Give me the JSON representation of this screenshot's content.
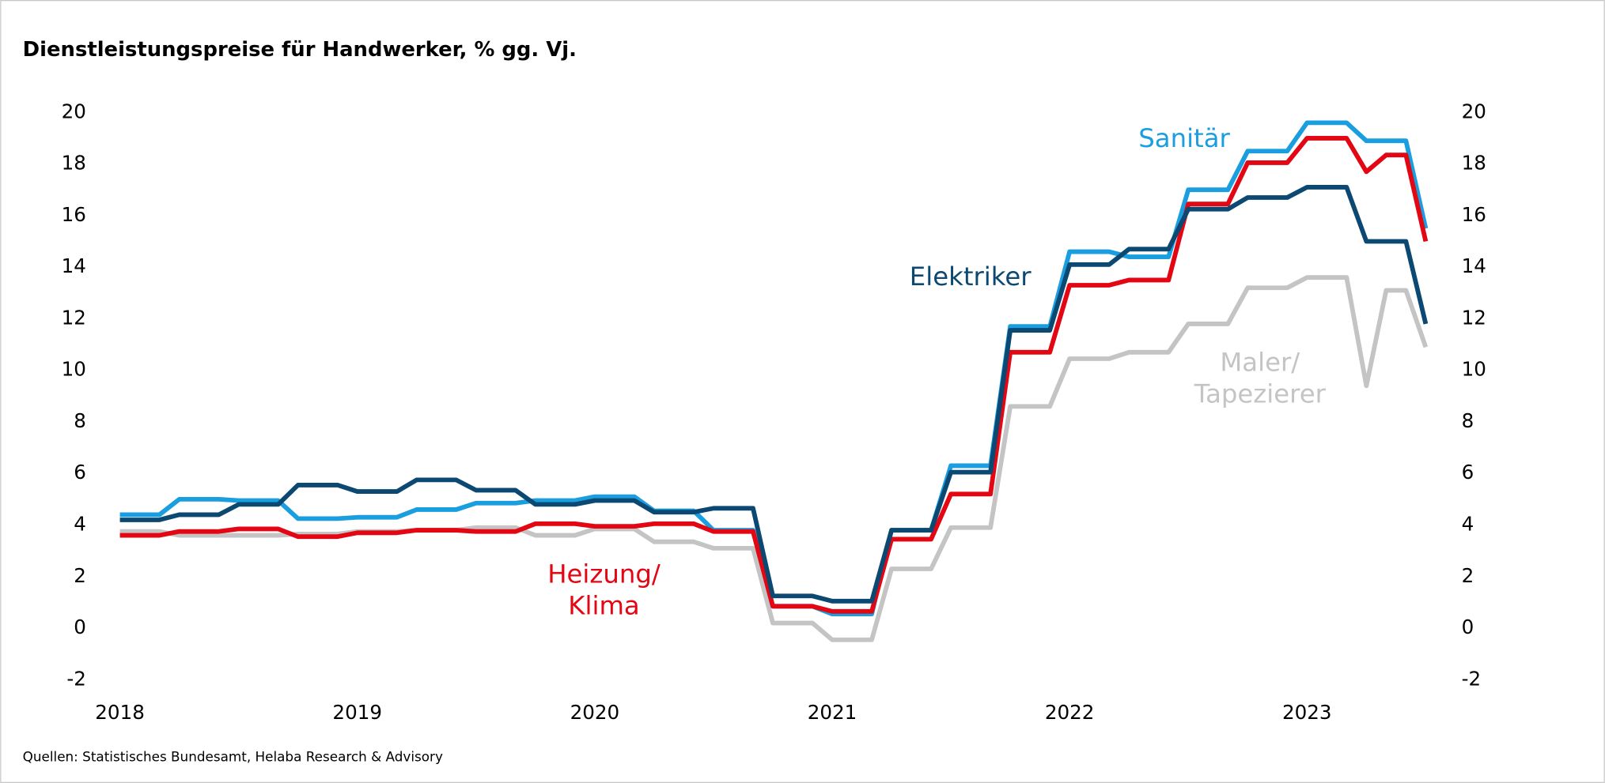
{
  "chart_data": {
    "type": "line",
    "title": "Dienstleistungspreise für Handwerker, % gg. Vj.",
    "source": "Quellen: Statistisches Bundesamt, Helaba Research & Advisory",
    "categories": [
      "2018",
      null,
      null,
      null,
      null,
      null,
      null,
      null,
      null,
      null,
      null,
      null,
      "2019",
      null,
      null,
      null,
      null,
      null,
      null,
      null,
      null,
      null,
      null,
      null,
      "2020",
      null,
      null,
      null,
      null,
      null,
      null,
      null,
      null,
      null,
      null,
      null,
      "2021",
      null,
      null,
      null,
      null,
      null,
      null,
      null,
      null,
      null,
      null,
      null,
      "2022",
      null,
      null,
      null,
      null,
      null,
      null,
      null,
      null,
      null,
      null,
      null,
      "2023",
      null,
      null,
      null,
      null,
      null,
      null
    ],
    "ylim": [
      -2,
      20
    ],
    "yticks": [
      -2,
      0,
      2,
      4,
      6,
      8,
      10,
      12,
      14,
      16,
      18,
      20
    ],
    "grid": false,
    "series": [
      {
        "name": "Maler/Tapezierer",
        "color": "#c4c4c4",
        "values": [
          3.75,
          3.75,
          3.75,
          3.6,
          3.6,
          3.6,
          3.6,
          3.6,
          3.6,
          3.65,
          3.65,
          3.65,
          3.75,
          3.75,
          3.75,
          3.8,
          3.8,
          3.8,
          3.9,
          3.9,
          3.9,
          3.6,
          3.6,
          3.6,
          3.85,
          3.85,
          3.85,
          3.35,
          3.35,
          3.35,
          3.1,
          3.1,
          3.1,
          0.2,
          0.2,
          0.2,
          -0.45,
          -0.45,
          -0.45,
          2.3,
          2.3,
          2.3,
          3.9,
          3.9,
          3.9,
          8.6,
          8.6,
          8.6,
          10.45,
          10.45,
          10.45,
          10.7,
          10.7,
          10.7,
          11.8,
          11.8,
          11.8,
          13.2,
          13.2,
          13.2,
          13.6,
          13.6,
          13.6,
          9.4,
          13.1,
          13.1,
          10.9
        ]
      },
      {
        "name": "Sanitär",
        "color": "#1a9ee0",
        "values": [
          4.4,
          4.4,
          4.4,
          5.0,
          5.0,
          5.0,
          4.95,
          4.95,
          4.95,
          4.25,
          4.25,
          4.25,
          4.3,
          4.3,
          4.3,
          4.6,
          4.6,
          4.6,
          4.85,
          4.85,
          4.85,
          4.95,
          4.95,
          4.95,
          5.1,
          5.1,
          5.1,
          4.55,
          4.55,
          4.55,
          3.8,
          3.8,
          3.8,
          0.85,
          0.85,
          0.85,
          0.55,
          0.55,
          0.55,
          3.8,
          3.8,
          3.8,
          6.3,
          6.3,
          6.3,
          11.7,
          11.7,
          11.7,
          14.6,
          14.6,
          14.6,
          14.4,
          14.4,
          14.4,
          17.0,
          17.0,
          17.0,
          18.5,
          18.5,
          18.5,
          19.6,
          19.6,
          19.6,
          18.9,
          18.9,
          18.9,
          15.5
        ]
      },
      {
        "name": "Heizung/Klima",
        "color": "#e30613",
        "values": [
          3.6,
          3.6,
          3.6,
          3.75,
          3.75,
          3.75,
          3.85,
          3.85,
          3.85,
          3.55,
          3.55,
          3.55,
          3.7,
          3.7,
          3.7,
          3.8,
          3.8,
          3.8,
          3.75,
          3.75,
          3.75,
          4.05,
          4.05,
          4.05,
          3.95,
          3.95,
          3.95,
          4.05,
          4.05,
          4.05,
          3.75,
          3.75,
          3.75,
          0.85,
          0.85,
          0.85,
          0.65,
          0.65,
          0.65,
          3.45,
          3.45,
          3.45,
          5.2,
          5.2,
          5.2,
          10.7,
          10.7,
          10.7,
          13.3,
          13.3,
          13.3,
          13.5,
          13.5,
          13.5,
          16.45,
          16.45,
          16.45,
          18.05,
          18.05,
          18.05,
          19.0,
          19.0,
          19.0,
          17.7,
          18.35,
          18.35,
          15.0
        ]
      },
      {
        "name": "Elektriker",
        "color": "#0b4872",
        "values": [
          4.2,
          4.2,
          4.2,
          4.4,
          4.4,
          4.4,
          4.8,
          4.8,
          4.8,
          5.55,
          5.55,
          5.55,
          5.3,
          5.3,
          5.3,
          5.75,
          5.75,
          5.75,
          5.35,
          5.35,
          5.35,
          4.8,
          4.8,
          4.8,
          4.95,
          4.95,
          4.95,
          4.5,
          4.5,
          4.5,
          4.65,
          4.65,
          4.65,
          1.25,
          1.25,
          1.25,
          1.05,
          1.05,
          1.05,
          3.8,
          3.8,
          3.8,
          6.05,
          6.05,
          6.05,
          11.55,
          11.55,
          11.55,
          14.1,
          14.1,
          14.1,
          14.7,
          14.7,
          14.7,
          16.25,
          16.25,
          16.25,
          16.7,
          16.7,
          16.7,
          17.1,
          17.1,
          17.1,
          15.0,
          15.0,
          15.0,
          11.8
        ]
      }
    ]
  }
}
